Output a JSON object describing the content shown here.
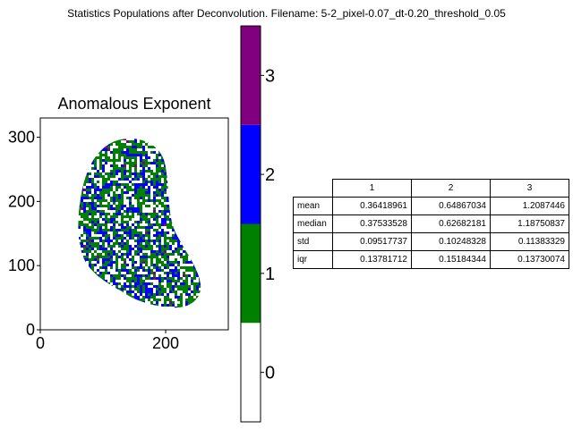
{
  "figure_title": "Statistics Populations after Deconvolution. Filename: 5-2_pixel-0.07_dt-0.20_threshold_0.05",
  "colors": {
    "0": "#ffffff",
    "1": "#008000",
    "2": "#0000ff",
    "3": "#800080"
  },
  "chart_data": [
    {
      "type": "heatmap",
      "title": "Anomalous Exponent",
      "xlim": [
        0,
        300
      ],
      "ylim": [
        0,
        330
      ],
      "xticks": [
        0,
        200
      ],
      "yticks": [
        0,
        100,
        200,
        300
      ],
      "description_values": "categorical population map (values 0-3) over a cell-shaped region"
    },
    {
      "type": "colorbar",
      "levels": [
        0,
        1,
        2,
        3
      ],
      "range": [
        -0.5,
        3.5
      ],
      "ticks": [
        0,
        1,
        2,
        3
      ]
    },
    {
      "type": "table",
      "columns": [
        "1",
        "2",
        "3"
      ],
      "rows": [
        {
          "label": "mean",
          "values": [
            "0.36418961",
            "0.64867034",
            "1.2087446"
          ]
        },
        {
          "label": "median",
          "values": [
            "0.37533528",
            "0.62682181",
            "1.18750837"
          ]
        },
        {
          "label": "std",
          "values": [
            "0.09517737",
            "0.10248328",
            "0.11383329"
          ]
        },
        {
          "label": "iqr",
          "values": [
            "0.13781712",
            "0.15184344",
            "0.13730074"
          ]
        }
      ]
    }
  ]
}
